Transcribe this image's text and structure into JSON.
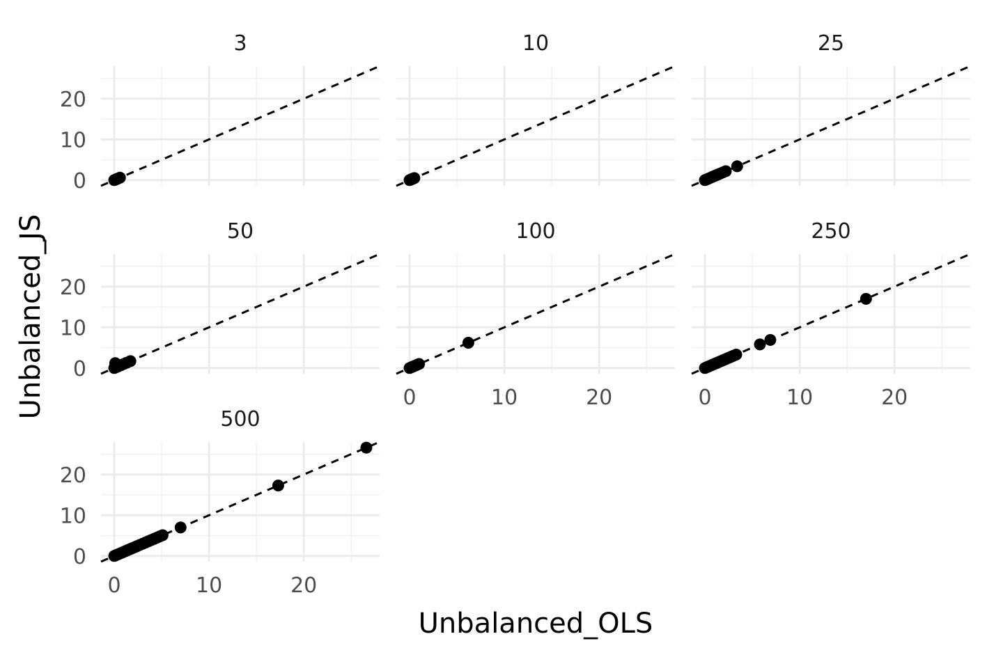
{
  "chart_data": {
    "type": "scatter",
    "layout": "facet-wrap 3 columns",
    "xlabel": "Unbalanced_OLS",
    "ylabel": "Unbalanced_JS",
    "xlim": [
      -1.4,
      28
    ],
    "ylim": [
      -1.4,
      28
    ],
    "x_ticks": [
      0,
      10,
      20
    ],
    "y_ticks": [
      0,
      10,
      20
    ],
    "x_tick_labels": [
      "0",
      "10",
      "20"
    ],
    "y_tick_labels": [
      "0",
      "10",
      "20"
    ],
    "grid": true,
    "reference_line": {
      "slope": 1,
      "intercept": 0,
      "style": "dashed"
    },
    "panels": [
      {
        "label": "3",
        "points": [
          [
            0.0,
            0.0
          ],
          [
            0.1,
            0.1
          ],
          [
            0.2,
            0.2
          ],
          [
            0.3,
            0.3
          ],
          [
            0.4,
            0.4
          ],
          [
            0.6,
            0.6
          ]
        ]
      },
      {
        "label": "10",
        "points": [
          [
            0.0,
            0.0
          ],
          [
            0.1,
            0.1
          ],
          [
            0.2,
            0.2
          ],
          [
            0.3,
            0.3
          ],
          [
            0.4,
            0.4
          ],
          [
            0.5,
            0.5
          ]
        ]
      },
      {
        "label": "25",
        "points": [
          [
            0.0,
            0.0
          ],
          [
            0.2,
            0.2
          ],
          [
            0.4,
            0.4
          ],
          [
            0.6,
            0.6
          ],
          [
            0.8,
            0.8
          ],
          [
            1.0,
            1.0
          ],
          [
            1.2,
            1.2
          ],
          [
            1.4,
            1.4
          ],
          [
            1.6,
            1.6
          ],
          [
            1.9,
            1.9
          ],
          [
            2.2,
            2.2
          ],
          [
            3.4,
            3.4
          ]
        ]
      },
      {
        "label": "50",
        "points": [
          [
            0.0,
            0.0
          ],
          [
            0.2,
            0.2
          ],
          [
            0.4,
            0.4
          ],
          [
            0.1,
            1.2
          ],
          [
            0.3,
            0.9
          ],
          [
            0.7,
            0.7
          ],
          [
            1.0,
            1.0
          ],
          [
            1.3,
            1.3
          ],
          [
            1.7,
            1.7
          ]
        ]
      },
      {
        "label": "100",
        "points": [
          [
            0.0,
            0.0
          ],
          [
            0.2,
            0.2
          ],
          [
            0.4,
            0.4
          ],
          [
            0.6,
            0.6
          ],
          [
            0.8,
            0.8
          ],
          [
            1.0,
            1.0
          ],
          [
            6.2,
            6.2
          ]
        ]
      },
      {
        "label": "250",
        "points": [
          [
            0.0,
            0.0
          ],
          [
            0.2,
            0.2
          ],
          [
            0.4,
            0.4
          ],
          [
            0.6,
            0.6
          ],
          [
            0.8,
            0.8
          ],
          [
            1.0,
            1.0
          ],
          [
            1.2,
            1.2
          ],
          [
            1.4,
            1.4
          ],
          [
            1.6,
            1.6
          ],
          [
            1.8,
            1.8
          ],
          [
            2.0,
            2.0
          ],
          [
            2.2,
            2.2
          ],
          [
            2.4,
            2.4
          ],
          [
            2.6,
            2.6
          ],
          [
            2.8,
            2.8
          ],
          [
            3.0,
            3.0
          ],
          [
            3.3,
            3.3
          ],
          [
            5.8,
            5.8
          ],
          [
            6.9,
            6.9
          ],
          [
            17.0,
            17.0
          ]
        ]
      },
      {
        "label": "500",
        "points": [
          [
            0.0,
            0.0
          ],
          [
            0.2,
            0.2
          ],
          [
            0.4,
            0.4
          ],
          [
            0.6,
            0.6
          ],
          [
            0.8,
            0.8
          ],
          [
            1.0,
            1.0
          ],
          [
            1.2,
            1.2
          ],
          [
            1.4,
            1.4
          ],
          [
            1.6,
            1.6
          ],
          [
            1.8,
            1.8
          ],
          [
            2.0,
            2.0
          ],
          [
            2.2,
            2.2
          ],
          [
            2.4,
            2.4
          ],
          [
            2.7,
            2.7
          ],
          [
            3.0,
            3.0
          ],
          [
            3.3,
            3.3
          ],
          [
            3.6,
            3.6
          ],
          [
            3.9,
            3.9
          ],
          [
            4.2,
            4.2
          ],
          [
            4.5,
            4.5
          ],
          [
            4.8,
            4.8
          ],
          [
            5.1,
            5.1
          ],
          [
            7.0,
            7.0
          ],
          [
            17.3,
            17.3
          ],
          [
            26.6,
            26.6
          ]
        ]
      }
    ]
  }
}
